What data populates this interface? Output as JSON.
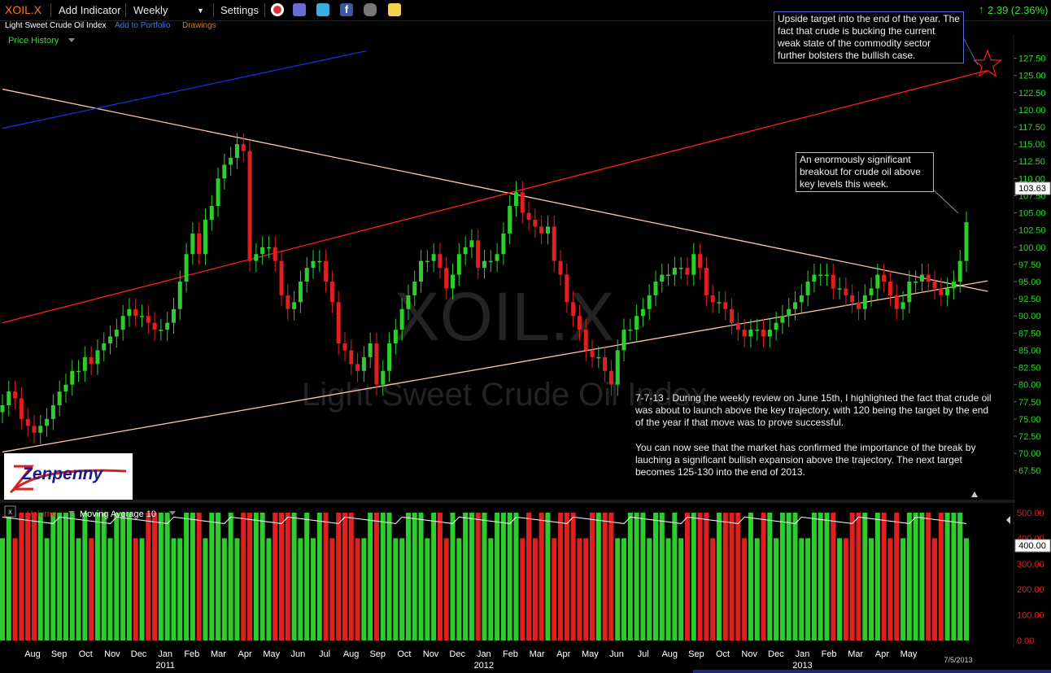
{
  "toolbar": {
    "symbol": "XOIL.X",
    "add_indicator": "Add Indicator",
    "period": "Weekly",
    "settings": "Settings",
    "change": "2.39 (2.36%)",
    "icons": [
      "alarm-clock-icon",
      "book-icon",
      "twitter-icon",
      "facebook-icon",
      "binoculars-icon",
      "note-icon"
    ]
  },
  "subbar": {
    "name": "Light Sweet Crude Oil Index",
    "add_to_portfolio": "Add to Portfolio",
    "drawings": "Drawings"
  },
  "price_panel": {
    "label": "Price History"
  },
  "watermark": {
    "symbol": "XOIL.X",
    "name": "Light Sweet Crude Oil Index"
  },
  "logo": {
    "text": "Zenpenny"
  },
  "annotations": {
    "upside": "Upside target into the end of the year. The fact that crude is bucking the current weak state of the commodity sector further bolsters the bullish case.",
    "breakout": "An enormously significant breakout for crude oil above key levels this week.",
    "review_p1": "7-7-13 - During the weekly review on June 15th, I highlighted the fact that crude oil was about to launch above the key trajectory, with 120 being the target by the end of the year if that move was to prove successful.",
    "review_p2": "You can now see that the market has confirmed the importance of the break by lauching a significant bullish expansion above the trajectory. The next target becomes 125-130 into the end of 2013."
  },
  "volume_panel": {
    "label": "Volume",
    "ma_label": "Moving Average 10"
  },
  "date_stamp": "7/5/2013",
  "colors": {
    "up": "#2ecc2e",
    "down": "#e02020",
    "trend": "#ff2020",
    "triangle": "#f5c8b0",
    "blue": "#1e2ed8",
    "axis": "#22dd22"
  },
  "chart_data": [
    {
      "type": "candlestick",
      "title": "XOIL.X",
      "last_price": 103.63,
      "ylim": [
        63.5,
        131
      ],
      "y_ticks": [
        67.5,
        70,
        72.5,
        75,
        77.5,
        80,
        82.5,
        85,
        87.5,
        90,
        92.5,
        95,
        97.5,
        100,
        102.5,
        105,
        107.5,
        110,
        112.5,
        115,
        117.5,
        120,
        122.5,
        125,
        127.5
      ],
      "x_months": [
        {
          "label": "Aug",
          "year": ""
        },
        {
          "label": "Sep",
          "year": ""
        },
        {
          "label": "Oct",
          "year": ""
        },
        {
          "label": "Nov",
          "year": ""
        },
        {
          "label": "Dec",
          "year": ""
        },
        {
          "label": "Jan",
          "year": "2011"
        },
        {
          "label": "Feb",
          "year": ""
        },
        {
          "label": "Mar",
          "year": ""
        },
        {
          "label": "Apr",
          "year": ""
        },
        {
          "label": "May",
          "year": ""
        },
        {
          "label": "Jun",
          "year": ""
        },
        {
          "label": "Jul",
          "year": ""
        },
        {
          "label": "Aug",
          "year": ""
        },
        {
          "label": "Sep",
          "year": ""
        },
        {
          "label": "Oct",
          "year": ""
        },
        {
          "label": "Nov",
          "year": ""
        },
        {
          "label": "Dec",
          "year": ""
        },
        {
          "label": "Jan",
          "year": "2012"
        },
        {
          "label": "Feb",
          "year": ""
        },
        {
          "label": "Mar",
          "year": ""
        },
        {
          "label": "Apr",
          "year": ""
        },
        {
          "label": "May",
          "year": ""
        },
        {
          "label": "Jun",
          "year": ""
        },
        {
          "label": "Jul",
          "year": ""
        },
        {
          "label": "Aug",
          "year": ""
        },
        {
          "label": "Sep",
          "year": ""
        },
        {
          "label": "Oct",
          "year": ""
        },
        {
          "label": "Nov",
          "year": ""
        },
        {
          "label": "Dec",
          "year": ""
        },
        {
          "label": "Jan",
          "year": "2013"
        },
        {
          "label": "Feb",
          "year": ""
        },
        {
          "label": "Mar",
          "year": ""
        },
        {
          "label": "Apr",
          "year": ""
        },
        {
          "label": "May",
          "year": ""
        }
      ],
      "closes": [
        77,
        79,
        78,
        75,
        74,
        73,
        74,
        75,
        77,
        79,
        80,
        82,
        82,
        84,
        83,
        85,
        86,
        87,
        88,
        90,
        91,
        90,
        90,
        89,
        88,
        88,
        89,
        91,
        95,
        99,
        102,
        99,
        104,
        106,
        110,
        112,
        113,
        115,
        114,
        98,
        99,
        100,
        100,
        98,
        93,
        91,
        92,
        95,
        97,
        98,
        98,
        95,
        92,
        86,
        85,
        83,
        82,
        84,
        86,
        80,
        82,
        86,
        88,
        91,
        93,
        95,
        98,
        98,
        99,
        97,
        94,
        96,
        99,
        100,
        101,
        97,
        98,
        98,
        99,
        102,
        106,
        108,
        105,
        104,
        103,
        102,
        103,
        98,
        96,
        92,
        90,
        88,
        85,
        84,
        84,
        82,
        80,
        85,
        88,
        88,
        90,
        91,
        93,
        95,
        96,
        96,
        97,
        97,
        96,
        99,
        97,
        93,
        92,
        92,
        91,
        89,
        88,
        87,
        88,
        88,
        87,
        88,
        89,
        90,
        91,
        92,
        93,
        95,
        96,
        96,
        96,
        94,
        94,
        93,
        92,
        91,
        93,
        94,
        96,
        95,
        93,
        91,
        92,
        95,
        95,
        96,
        95,
        94,
        93,
        94,
        95,
        98,
        103.63
      ],
      "trendlines": [
        {
          "name": "resistance",
          "from": {
            "index": 0,
            "value": 123
          },
          "to": {
            "index": 151,
            "value": 94.4
          }
        },
        {
          "name": "support",
          "from": {
            "index": 0,
            "value": 70.2
          },
          "to": {
            "index": 151,
            "value": 94.4
          }
        },
        {
          "name": "trajectory",
          "from": {
            "index": 0,
            "value": 89
          },
          "to": {
            "index": 151,
            "value": 124.7
          }
        },
        {
          "name": "blue",
          "from": {
            "index": 0,
            "value": 117.3
          },
          "to": {
            "index": 53,
            "value": 127.7
          }
        }
      ]
    },
    {
      "type": "bar",
      "title": "Volume",
      "ylim": [
        0,
        500
      ],
      "y_ticks": [
        0,
        100,
        200,
        300,
        400,
        500
      ],
      "last_value": 400,
      "bar_values": [
        400,
        500
      ],
      "moving_average": 470
    }
  ]
}
